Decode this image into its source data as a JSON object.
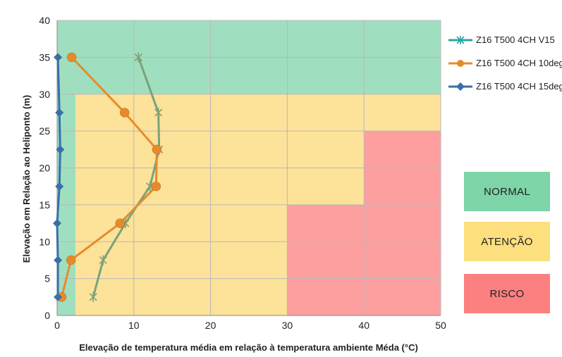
{
  "chart_data": {
    "type": "line",
    "xlabel": "Elevação de temperatura média em relação à temperatura ambiente Méda (°C)",
    "ylabel": "Elevação em Relação ao Heliponto (m)",
    "xlim": [
      0,
      50
    ],
    "ylim": [
      0,
      40
    ],
    "x_ticks": [
      0,
      10,
      20,
      30,
      40,
      50
    ],
    "y_ticks": [
      0,
      5,
      10,
      15,
      20,
      25,
      30,
      35,
      40
    ],
    "grid": true,
    "legend_position": "right",
    "zones": [
      {
        "name": "normal",
        "color": "#9fdfbf",
        "rects": [
          {
            "x": [
              0,
              50
            ],
            "y": [
              30,
              40
            ]
          },
          {
            "x": [
              0,
              2.4
            ],
            "y": [
              0,
              30
            ]
          }
        ]
      },
      {
        "name": "atencao",
        "color": "#fde29a",
        "rects": [
          {
            "x": [
              2.4,
              50
            ],
            "y": [
              0,
              30
            ]
          }
        ]
      },
      {
        "name": "risco",
        "color": "#fd9f9f",
        "rects": [
          {
            "x": [
              30,
              40
            ],
            "y": [
              0,
              15
            ]
          },
          {
            "x": [
              40,
              50
            ],
            "y": [
              0,
              25
            ]
          }
        ]
      }
    ],
    "zone_labels": [
      {
        "label": "NORMAL",
        "color": "#7dd5a8"
      },
      {
        "label": "ATENÇÃO",
        "color": "#fddf7e"
      },
      {
        "label": "RISCO",
        "color": "#fc8080"
      }
    ],
    "series": [
      {
        "name": "Z16 T500 4CH V15",
        "color": "#7aa37a",
        "marker": "star",
        "x": [
          4.7,
          6.0,
          8.9,
          12.1,
          13.3,
          13.2,
          10.6
        ],
        "y": [
          2.5,
          7.5,
          12.5,
          17.5,
          22.5,
          27.5,
          35
        ]
      },
      {
        "name": "Z16 T500 4CH 10deg",
        "color": "#e88a2a",
        "marker": "circle",
        "x": [
          0.6,
          1.8,
          8.2,
          12.9,
          13.0,
          8.8,
          1.9
        ],
        "y": [
          2.5,
          7.5,
          12.5,
          17.5,
          22.5,
          27.5,
          35
        ]
      },
      {
        "name": "Z16 T500 4CH 15deg",
        "color": "#3a6fa8",
        "marker": "diamond",
        "x": [
          0.1,
          0.1,
          0.0,
          0.3,
          0.4,
          0.3,
          0.1
        ],
        "y": [
          2.5,
          7.5,
          12.5,
          17.5,
          22.5,
          27.5,
          35
        ]
      }
    ]
  }
}
